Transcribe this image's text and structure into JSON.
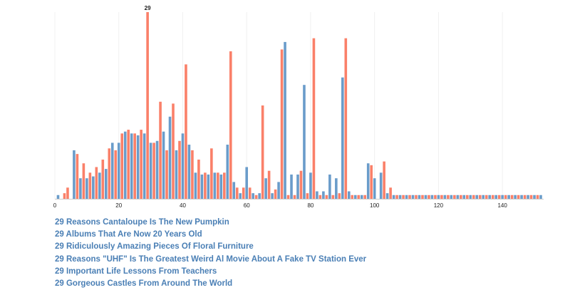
{
  "chart_data": {
    "type": "bar",
    "x_ticks": [
      0,
      20,
      40,
      60,
      80,
      100,
      120,
      140
    ],
    "xlim": [
      0,
      152
    ],
    "ylim": [
      0,
      100
    ],
    "series": [
      {
        "color": "#fa8069",
        "points": [
          [
            3,
            3
          ],
          [
            4,
            6
          ],
          [
            7,
            24
          ],
          [
            9,
            19
          ],
          [
            11,
            14
          ],
          [
            13,
            17
          ],
          [
            15,
            21
          ],
          [
            17,
            27
          ],
          [
            19,
            26
          ],
          [
            21,
            35
          ],
          [
            23,
            37
          ],
          [
            25,
            35
          ],
          [
            27,
            37
          ],
          [
            29,
            100
          ],
          [
            31,
            30
          ],
          [
            33,
            52
          ],
          [
            35,
            26
          ],
          [
            37,
            51
          ],
          [
            39,
            31
          ],
          [
            41,
            72
          ],
          [
            43,
            26
          ],
          [
            45,
            21
          ],
          [
            47,
            14
          ],
          [
            49,
            27
          ],
          [
            51,
            14
          ],
          [
            53,
            14
          ],
          [
            55,
            79
          ],
          [
            57,
            6
          ],
          [
            59,
            6
          ],
          [
            61,
            6
          ],
          [
            63,
            2
          ],
          [
            65,
            50
          ],
          [
            67,
            15
          ],
          [
            69,
            5
          ],
          [
            71,
            80
          ],
          [
            73,
            2
          ],
          [
            75,
            2
          ],
          [
            77,
            15
          ],
          [
            79,
            3
          ],
          [
            81,
            86
          ],
          [
            83,
            2
          ],
          [
            85,
            2
          ],
          [
            87,
            2
          ],
          [
            89,
            3
          ],
          [
            91,
            86
          ],
          [
            93,
            2
          ],
          [
            95,
            2
          ],
          [
            97,
            2
          ],
          [
            99,
            18
          ],
          [
            103,
            20
          ],
          [
            105,
            6
          ],
          [
            107,
            2
          ],
          [
            109,
            2
          ],
          [
            111,
            2
          ],
          [
            113,
            2
          ],
          [
            115,
            2
          ],
          [
            117,
            2
          ],
          [
            119,
            2
          ],
          [
            121,
            2
          ],
          [
            123,
            2
          ],
          [
            125,
            2
          ],
          [
            127,
            2
          ],
          [
            129,
            2
          ],
          [
            131,
            2
          ],
          [
            133,
            2
          ],
          [
            135,
            2
          ],
          [
            137,
            2
          ],
          [
            139,
            2
          ],
          [
            141,
            2
          ],
          [
            143,
            2
          ],
          [
            145,
            2
          ],
          [
            147,
            2
          ],
          [
            149,
            2
          ],
          [
            151,
            2
          ]
        ]
      },
      {
        "color": "#6a9cca",
        "points": [
          [
            1,
            2
          ],
          [
            2,
            0
          ],
          [
            6,
            26
          ],
          [
            8,
            11
          ],
          [
            10,
            11
          ],
          [
            12,
            12
          ],
          [
            14,
            14
          ],
          [
            16,
            16
          ],
          [
            18,
            30
          ],
          [
            20,
            30
          ],
          [
            22,
            36
          ],
          [
            24,
            35
          ],
          [
            26,
            34
          ],
          [
            28,
            35
          ],
          [
            30,
            30
          ],
          [
            32,
            31
          ],
          [
            34,
            36
          ],
          [
            36,
            44
          ],
          [
            38,
            26
          ],
          [
            40,
            35
          ],
          [
            42,
            29
          ],
          [
            44,
            14
          ],
          [
            46,
            13
          ],
          [
            48,
            13
          ],
          [
            50,
            14
          ],
          [
            52,
            13
          ],
          [
            54,
            29
          ],
          [
            56,
            9
          ],
          [
            58,
            3
          ],
          [
            60,
            17
          ],
          [
            62,
            3
          ],
          [
            64,
            3
          ],
          [
            66,
            11
          ],
          [
            68,
            3
          ],
          [
            70,
            9
          ],
          [
            72,
            84
          ],
          [
            74,
            13
          ],
          [
            76,
            13
          ],
          [
            78,
            61
          ],
          [
            80,
            14
          ],
          [
            82,
            4
          ],
          [
            84,
            4
          ],
          [
            86,
            13
          ],
          [
            88,
            11
          ],
          [
            90,
            65
          ],
          [
            92,
            4
          ],
          [
            94,
            2
          ],
          [
            96,
            2
          ],
          [
            98,
            19
          ],
          [
            100,
            11
          ],
          [
            102,
            14
          ],
          [
            104,
            3
          ],
          [
            106,
            2
          ],
          [
            108,
            2
          ],
          [
            110,
            2
          ],
          [
            112,
            2
          ],
          [
            114,
            2
          ],
          [
            116,
            2
          ],
          [
            118,
            2
          ],
          [
            120,
            2
          ],
          [
            122,
            2
          ],
          [
            124,
            2
          ],
          [
            126,
            2
          ],
          [
            128,
            2
          ],
          [
            130,
            2
          ],
          [
            132,
            2
          ],
          [
            134,
            2
          ],
          [
            136,
            2
          ],
          [
            138,
            2
          ],
          [
            140,
            2
          ],
          [
            142,
            2
          ],
          [
            144,
            2
          ],
          [
            146,
            2
          ],
          [
            148,
            2
          ],
          [
            150,
            2
          ],
          [
            152,
            2
          ]
        ]
      }
    ],
    "data_labels": [
      {
        "x": 29,
        "y": 100,
        "text": "29"
      }
    ]
  },
  "links": [
    "29 Reasons Cantaloupe Is The New Pumpkin",
    "29 Albums That Are Now 20 Years Old",
    "29 Ridiculously Amazing Pieces Of Floral Furniture",
    "29 Reasons \"UHF\" Is The Greatest Weird Al Movie About A Fake TV Station Ever",
    "29 Important Life Lessons From Teachers",
    "29 Gorgeous Castles From Around The World"
  ]
}
